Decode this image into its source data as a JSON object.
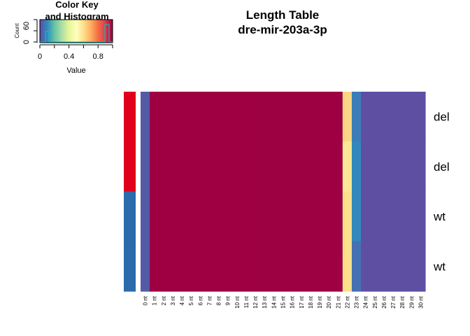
{
  "chart_data": {
    "type": "heatmap",
    "title_line1": "Length Table",
    "title_line2": "dre-mir-203a-3p",
    "columns": [
      "0 nt",
      "1 nt",
      "2 nt",
      "3 nt",
      "4 nt",
      "5 nt",
      "6 nt",
      "7 nt",
      "8 nt",
      "9 nt",
      "10 nt",
      "11 nt",
      "12 nt",
      "13 nt",
      "14 nt",
      "15 nt",
      "16 nt",
      "17 nt",
      "18 nt",
      "19 nt",
      "20 nt",
      "21 nt",
      "22 nt",
      "23 nt",
      "24 nt",
      "25 nt",
      "26 nt",
      "27 nt",
      "28 nt",
      "29 nt",
      "30 nt"
    ],
    "rows": [
      {
        "label": "del",
        "group": "del",
        "values": [
          0.02,
          1,
          1,
          1,
          1,
          1,
          1,
          1,
          1,
          1,
          1,
          1,
          1,
          1,
          1,
          1,
          1,
          1,
          1,
          1,
          1,
          1,
          0.62,
          0.08,
          0,
          0,
          0,
          0,
          0,
          0,
          0
        ]
      },
      {
        "label": "del",
        "group": "del",
        "values": [
          0.02,
          1,
          1,
          1,
          1,
          1,
          1,
          1,
          1,
          1,
          1,
          1,
          1,
          1,
          1,
          1,
          1,
          1,
          1,
          1,
          1,
          1,
          0.58,
          0.1,
          0,
          0,
          0,
          0,
          0,
          0,
          0
        ]
      },
      {
        "label": "wt",
        "group": "wt",
        "values": [
          0.02,
          1,
          1,
          1,
          1,
          1,
          1,
          1,
          1,
          1,
          1,
          1,
          1,
          1,
          1,
          1,
          1,
          1,
          1,
          1,
          1,
          1,
          0.6,
          0.1,
          0,
          0,
          0,
          0,
          0,
          0,
          0
        ]
      },
      {
        "label": "wt",
        "group": "wt",
        "values": [
          0.02,
          1,
          1,
          1,
          1,
          1,
          1,
          1,
          1,
          1,
          1,
          1,
          1,
          1,
          1,
          1,
          1,
          1,
          1,
          1,
          1,
          1,
          0.6,
          0.06,
          0,
          0,
          0,
          0,
          0,
          0,
          0
        ]
      }
    ],
    "row_side_colors": {
      "del": "#e0001b",
      "wt": "#2b6bab"
    },
    "palette": [
      "#5e4fa2",
      "#3288bd",
      "#66c2a5",
      "#abdda4",
      "#e6f598",
      "#ffffbf",
      "#fee08b",
      "#fdae61",
      "#f46d43",
      "#d53e4f",
      "#9e0142"
    ],
    "color_key": {
      "title_line1": "Color Key",
      "title_line2": "and Histogram",
      "xlabel": "Value",
      "ylabel": "Count",
      "xticks": [
        "0",
        "0.4",
        "0.8"
      ],
      "yticks": [
        "0",
        "60"
      ],
      "range": [
        0,
        1
      ]
    }
  }
}
